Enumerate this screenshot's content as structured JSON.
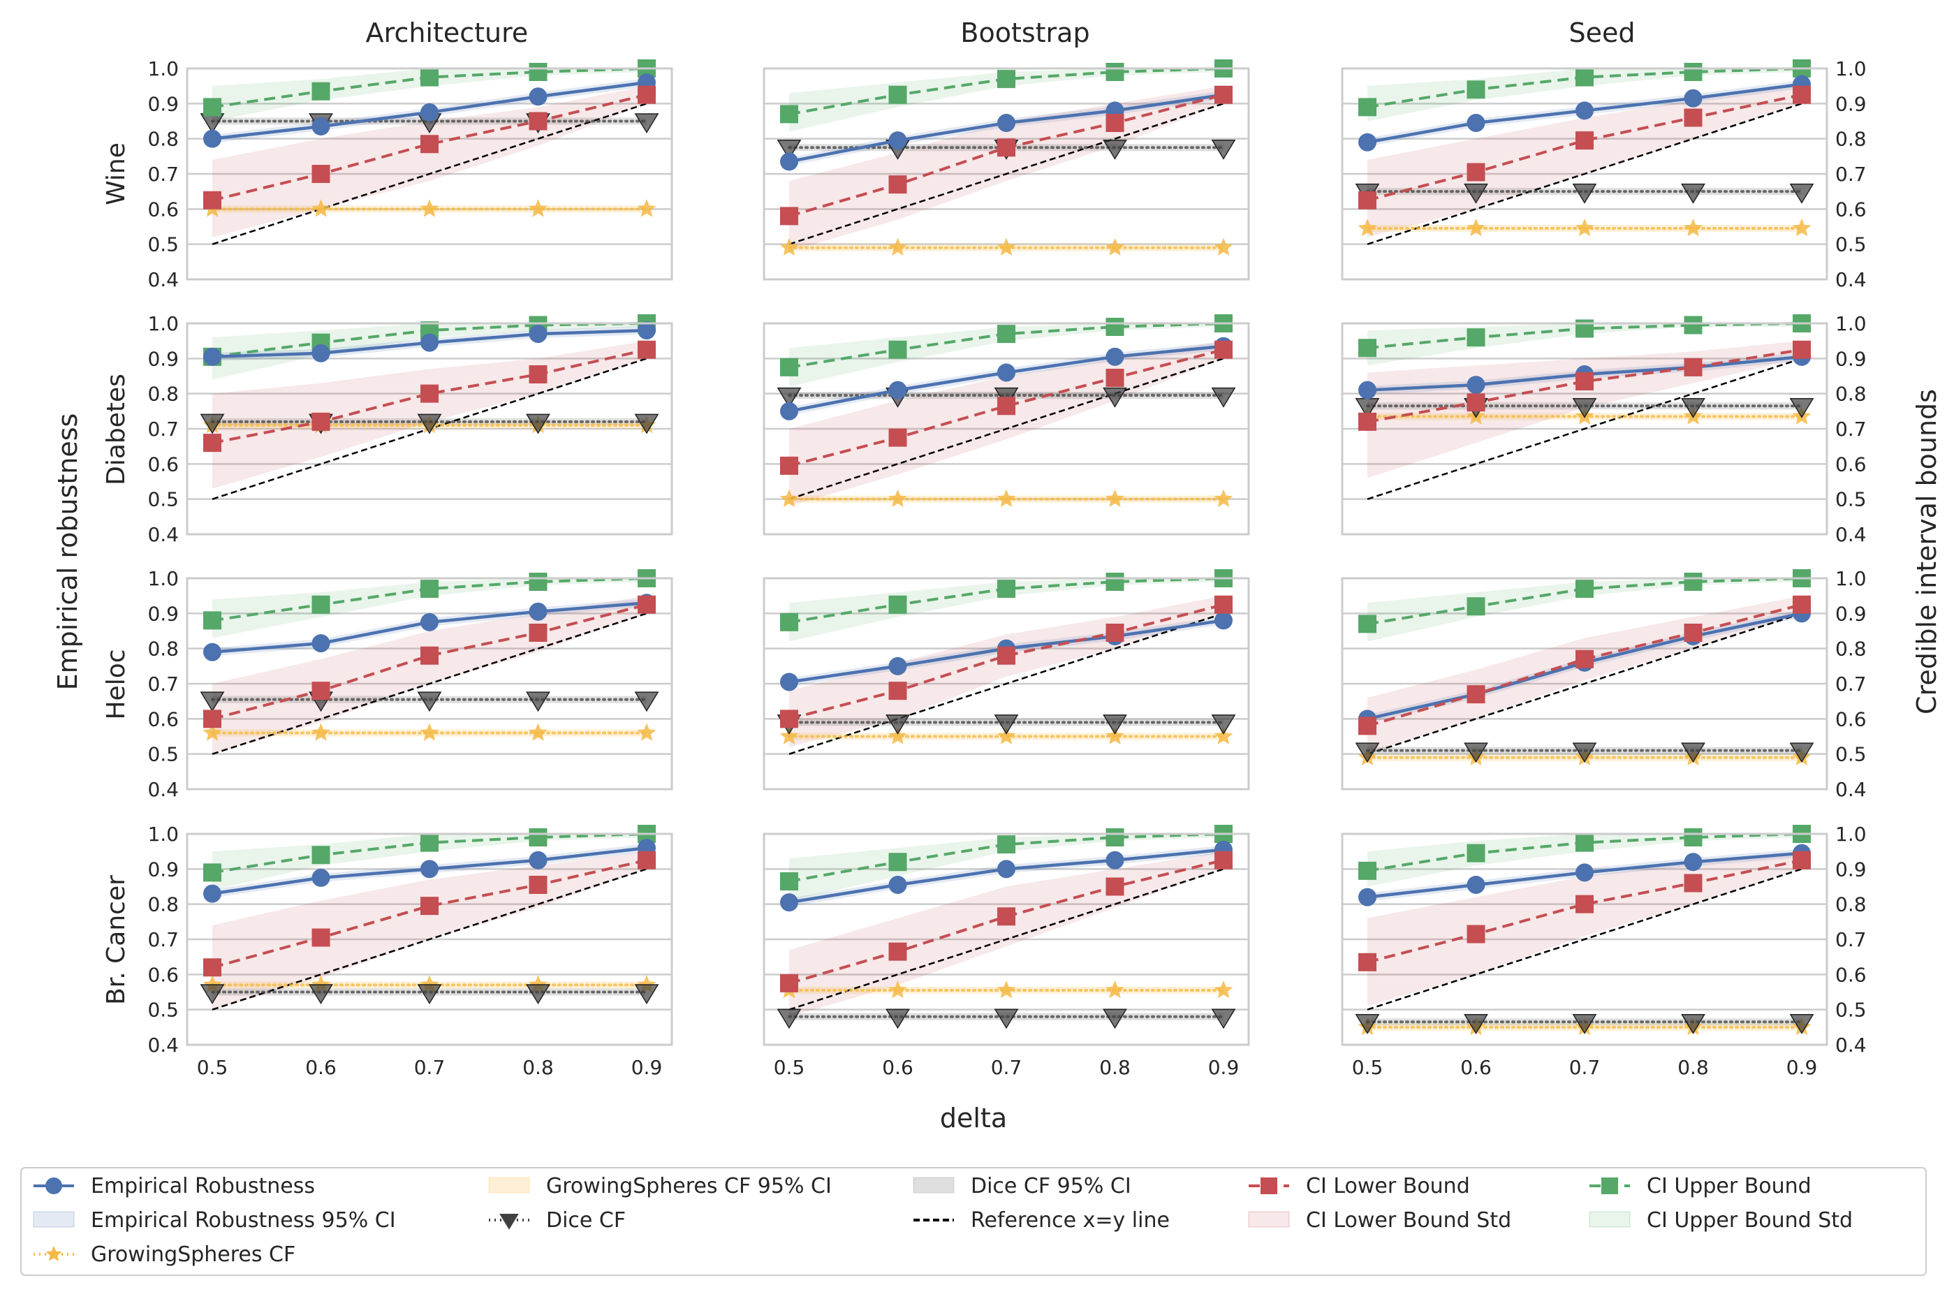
{
  "chart_data": {
    "type": "line",
    "x_label": "delta",
    "y_label_left": "Empirical robustness",
    "y_label_right": "Credible interval bounds",
    "x_ticks": [
      "0.5",
      "0.6",
      "0.7",
      "0.8",
      "0.9"
    ],
    "x_values": [
      0.5,
      0.6,
      0.7,
      0.8,
      0.9
    ],
    "y_ticks": [
      "0.4",
      "0.5",
      "0.6",
      "0.7",
      "0.8",
      "0.9",
      "1.0"
    ],
    "ylim": [
      0.4,
      1.0
    ],
    "column_titles": [
      "Architecture",
      "Bootstrap",
      "Seed"
    ],
    "row_labels": [
      "Wine",
      "Diabetes",
      "Heloc",
      "Br. Cancer"
    ],
    "grid": true,
    "legend_position": "bottom",
    "legend": [
      {
        "key": "emp",
        "label": "Empirical Robustness",
        "kind": "line-marker"
      },
      {
        "key": "emp_ci",
        "label": "Empirical Robustness 95% CI",
        "kind": "patch"
      },
      {
        "key": "gs",
        "label": "GrowingSpheres CF",
        "kind": "line-marker"
      },
      {
        "key": "gs_ci",
        "label": "GrowingSpheres CF 95% CI",
        "kind": "patch"
      },
      {
        "key": "dice",
        "label": "Dice CF",
        "kind": "line-marker"
      },
      {
        "key": "dice_ci",
        "label": "Dice CF 95% CI",
        "kind": "patch"
      },
      {
        "key": "ref",
        "label": "Reference x=y line",
        "kind": "line"
      },
      {
        "key": "lower",
        "label": "CI Lower Bound",
        "kind": "line-marker"
      },
      {
        "key": "lower_std",
        "label": "CI Lower Bound Std",
        "kind": "patch"
      },
      {
        "key": "upper",
        "label": "CI Upper Bound",
        "kind": "line-marker"
      },
      {
        "key": "upper_std",
        "label": "CI Upper Bound Std",
        "kind": "patch"
      }
    ],
    "colors": {
      "emp": "#4c72b0",
      "gs": "#f5b944",
      "dice": "#404040",
      "lower": "#c44e52",
      "upper": "#55a868",
      "ref": "#000000"
    },
    "panels": [
      {
        "row": "Wine",
        "col": "Architecture",
        "empirical": [
          0.8,
          0.835,
          0.875,
          0.92,
          0.96
        ],
        "lower": [
          0.625,
          0.7,
          0.785,
          0.85,
          0.925
        ],
        "lower_band": [
          [
            0.52,
            0.74
          ],
          [
            0.6,
            0.8
          ],
          [
            0.68,
            0.85
          ],
          [
            0.78,
            0.89
          ],
          [
            0.9,
            0.95
          ]
        ],
        "upper": [
          0.89,
          0.935,
          0.975,
          0.99,
          1.0
        ],
        "upper_band": [
          [
            0.85,
            0.95
          ],
          [
            0.91,
            0.97
          ],
          [
            0.95,
            1.0
          ],
          [
            0.98,
            1.0
          ],
          [
            0.99,
            1.0
          ]
        ],
        "growingspheres": 0.6,
        "dice": 0.85
      },
      {
        "row": "Wine",
        "col": "Bootstrap",
        "empirical": [
          0.735,
          0.795,
          0.845,
          0.88,
          0.925
        ],
        "lower": [
          0.58,
          0.67,
          0.775,
          0.845,
          0.925
        ],
        "lower_band": [
          [
            0.48,
            0.68
          ],
          [
            0.57,
            0.76
          ],
          [
            0.68,
            0.85
          ],
          [
            0.78,
            0.9
          ],
          [
            0.9,
            0.95
          ]
        ],
        "upper": [
          0.87,
          0.925,
          0.97,
          0.99,
          1.0
        ],
        "upper_band": [
          [
            0.82,
            0.93
          ],
          [
            0.89,
            0.96
          ],
          [
            0.95,
            0.99
          ],
          [
            0.98,
            1.0
          ],
          [
            0.99,
            1.0
          ]
        ],
        "growingspheres": 0.49,
        "dice": 0.775
      },
      {
        "row": "Wine",
        "col": "Seed",
        "empirical": [
          0.79,
          0.845,
          0.88,
          0.915,
          0.955
        ],
        "lower": [
          0.625,
          0.705,
          0.795,
          0.86,
          0.925
        ],
        "lower_band": [
          [
            0.52,
            0.74
          ],
          [
            0.6,
            0.8
          ],
          [
            0.7,
            0.86
          ],
          [
            0.8,
            0.91
          ],
          [
            0.9,
            0.95
          ]
        ],
        "upper": [
          0.89,
          0.94,
          0.975,
          0.99,
          1.0
        ],
        "upper_band": [
          [
            0.85,
            0.95
          ],
          [
            0.91,
            0.97
          ],
          [
            0.95,
            1.0
          ],
          [
            0.98,
            1.0
          ],
          [
            0.99,
            1.0
          ]
        ],
        "growingspheres": 0.545,
        "dice": 0.65
      },
      {
        "row": "Diabetes",
        "col": "Architecture",
        "empirical": [
          0.905,
          0.915,
          0.945,
          0.97,
          0.98
        ],
        "lower": [
          0.66,
          0.72,
          0.8,
          0.855,
          0.925
        ],
        "lower_band": [
          [
            0.53,
            0.8
          ],
          [
            0.62,
            0.83
          ],
          [
            0.72,
            0.87
          ],
          [
            0.8,
            0.9
          ],
          [
            0.9,
            0.95
          ]
        ],
        "upper": [
          0.905,
          0.945,
          0.98,
          0.995,
          1.0
        ],
        "upper_band": [
          [
            0.84,
            0.96
          ],
          [
            0.91,
            0.98
          ],
          [
            0.96,
            1.0
          ],
          [
            0.98,
            1.0
          ],
          [
            0.99,
            1.0
          ]
        ],
        "growingspheres": 0.71,
        "dice": 0.72
      },
      {
        "row": "Diabetes",
        "col": "Bootstrap",
        "empirical": [
          0.75,
          0.81,
          0.86,
          0.905,
          0.935
        ],
        "lower": [
          0.595,
          0.675,
          0.765,
          0.845,
          0.925
        ],
        "lower_band": [
          [
            0.48,
            0.7
          ],
          [
            0.57,
            0.78
          ],
          [
            0.67,
            0.85
          ],
          [
            0.78,
            0.9
          ],
          [
            0.9,
            0.95
          ]
        ],
        "upper": [
          0.875,
          0.925,
          0.97,
          0.99,
          1.0
        ],
        "upper_band": [
          [
            0.82,
            0.93
          ],
          [
            0.89,
            0.96
          ],
          [
            0.95,
            0.99
          ],
          [
            0.98,
            1.0
          ],
          [
            0.99,
            1.0
          ]
        ],
        "growingspheres": 0.5,
        "dice": 0.795
      },
      {
        "row": "Diabetes",
        "col": "Seed",
        "empirical": [
          0.81,
          0.825,
          0.855,
          0.875,
          0.905
        ],
        "lower": [
          0.72,
          0.775,
          0.835,
          0.875,
          0.925
        ],
        "lower_band": [
          [
            0.56,
            0.86
          ],
          [
            0.66,
            0.88
          ],
          [
            0.76,
            0.9
          ],
          [
            0.83,
            0.92
          ],
          [
            0.9,
            0.95
          ]
        ],
        "upper": [
          0.93,
          0.96,
          0.985,
          0.995,
          1.0
        ],
        "upper_band": [
          [
            0.88,
            0.98
          ],
          [
            0.93,
            0.99
          ],
          [
            0.97,
            1.0
          ],
          [
            0.99,
            1.0
          ],
          [
            0.99,
            1.0
          ]
        ],
        "growingspheres": 0.735,
        "dice": 0.765
      },
      {
        "row": "Heloc",
        "col": "Architecture",
        "empirical": [
          0.79,
          0.815,
          0.875,
          0.905,
          0.93
        ],
        "lower": [
          0.6,
          0.68,
          0.78,
          0.845,
          0.925
        ],
        "lower_band": [
          [
            0.5,
            0.7
          ],
          [
            0.59,
            0.77
          ],
          [
            0.7,
            0.85
          ],
          [
            0.79,
            0.9
          ],
          [
            0.9,
            0.95
          ]
        ],
        "upper": [
          0.88,
          0.925,
          0.97,
          0.99,
          1.0
        ],
        "upper_band": [
          [
            0.83,
            0.94
          ],
          [
            0.89,
            0.96
          ],
          [
            0.95,
            0.99
          ],
          [
            0.98,
            1.0
          ],
          [
            0.99,
            1.0
          ]
        ],
        "growingspheres": 0.56,
        "dice": 0.655
      },
      {
        "row": "Heloc",
        "col": "Bootstrap",
        "empirical": [
          0.705,
          0.75,
          0.8,
          0.835,
          0.88
        ],
        "lower": [
          0.6,
          0.68,
          0.78,
          0.845,
          0.925
        ],
        "lower_band": [
          [
            0.52,
            0.68
          ],
          [
            0.6,
            0.76
          ],
          [
            0.72,
            0.84
          ],
          [
            0.8,
            0.89
          ],
          [
            0.9,
            0.95
          ]
        ],
        "upper": [
          0.875,
          0.925,
          0.97,
          0.99,
          1.0
        ],
        "upper_band": [
          [
            0.82,
            0.93
          ],
          [
            0.89,
            0.96
          ],
          [
            0.95,
            0.99
          ],
          [
            0.98,
            1.0
          ],
          [
            0.99,
            1.0
          ]
        ],
        "growingspheres": 0.55,
        "dice": 0.59
      },
      {
        "row": "Heloc",
        "col": "Seed",
        "empirical": [
          0.6,
          0.67,
          0.76,
          0.835,
          0.9
        ],
        "lower": [
          0.58,
          0.67,
          0.77,
          0.845,
          0.925
        ],
        "lower_band": [
          [
            0.5,
            0.66
          ],
          [
            0.6,
            0.74
          ],
          [
            0.71,
            0.83
          ],
          [
            0.8,
            0.89
          ],
          [
            0.9,
            0.95
          ]
        ],
        "upper": [
          0.87,
          0.92,
          0.97,
          0.99,
          1.0
        ],
        "upper_band": [
          [
            0.82,
            0.93
          ],
          [
            0.89,
            0.96
          ],
          [
            0.95,
            0.99
          ],
          [
            0.98,
            1.0
          ],
          [
            0.99,
            1.0
          ]
        ],
        "growingspheres": 0.49,
        "dice": 0.51
      },
      {
        "row": "Br. Cancer",
        "col": "Architecture",
        "empirical": [
          0.83,
          0.875,
          0.9,
          0.925,
          0.96
        ],
        "lower": [
          0.62,
          0.705,
          0.795,
          0.855,
          0.925
        ],
        "lower_band": [
          [
            0.5,
            0.74
          ],
          [
            0.59,
            0.81
          ],
          [
            0.7,
            0.87
          ],
          [
            0.79,
            0.91
          ],
          [
            0.9,
            0.95
          ]
        ],
        "upper": [
          0.89,
          0.94,
          0.975,
          0.99,
          1.0
        ],
        "upper_band": [
          [
            0.84,
            0.95
          ],
          [
            0.91,
            0.97
          ],
          [
            0.95,
            1.0
          ],
          [
            0.98,
            1.0
          ],
          [
            0.99,
            1.0
          ]
        ],
        "growingspheres": 0.57,
        "dice": 0.55
      },
      {
        "row": "Br. Cancer",
        "col": "Bootstrap",
        "empirical": [
          0.805,
          0.855,
          0.9,
          0.925,
          0.955
        ],
        "lower": [
          0.575,
          0.665,
          0.765,
          0.85,
          0.925
        ],
        "lower_band": [
          [
            0.48,
            0.67
          ],
          [
            0.57,
            0.76
          ],
          [
            0.68,
            0.85
          ],
          [
            0.79,
            0.9
          ],
          [
            0.9,
            0.95
          ]
        ],
        "upper": [
          0.865,
          0.92,
          0.97,
          0.99,
          1.0
        ],
        "upper_band": [
          [
            0.81,
            0.93
          ],
          [
            0.88,
            0.96
          ],
          [
            0.95,
            0.99
          ],
          [
            0.98,
            1.0
          ],
          [
            0.99,
            1.0
          ]
        ],
        "growingspheres": 0.555,
        "dice": 0.48
      },
      {
        "row": "Br. Cancer",
        "col": "Seed",
        "empirical": [
          0.82,
          0.855,
          0.89,
          0.92,
          0.945
        ],
        "lower": [
          0.635,
          0.715,
          0.8,
          0.86,
          0.925
        ],
        "lower_band": [
          [
            0.51,
            0.76
          ],
          [
            0.6,
            0.82
          ],
          [
            0.71,
            0.88
          ],
          [
            0.8,
            0.92
          ],
          [
            0.9,
            0.95
          ]
        ],
        "upper": [
          0.895,
          0.945,
          0.975,
          0.99,
          1.0
        ],
        "upper_band": [
          [
            0.85,
            0.95
          ],
          [
            0.91,
            0.98
          ],
          [
            0.95,
            1.0
          ],
          [
            0.98,
            1.0
          ],
          [
            0.99,
            1.0
          ]
        ],
        "growingspheres": 0.45,
        "dice": 0.465
      }
    ]
  }
}
